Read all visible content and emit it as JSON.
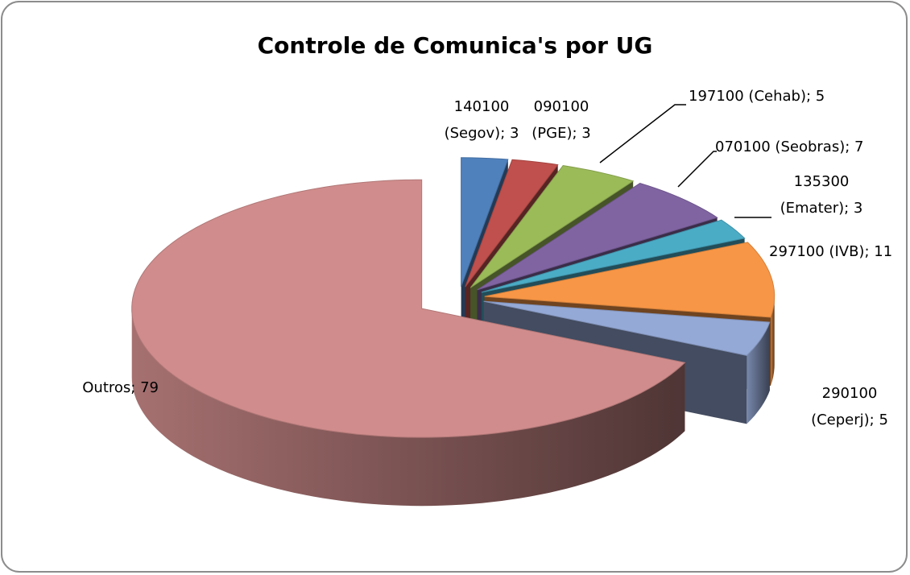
{
  "chart_data": {
    "type": "pie3d",
    "title": "Controle de Comunica's por UG",
    "values": [
      3,
      3,
      5,
      7,
      3,
      11,
      5,
      79
    ],
    "value_labels": [
      "140100 (Segov); 3",
      "090100 (PGE); 3",
      "197100 (Cehab); 5",
      "070100 (Seobras); 7",
      "135300 (Emater); 3",
      "297100 (IVB); 11",
      "290100 (Ceperj); 5",
      "Outros; 79"
    ],
    "colors": [
      "#4f81bd",
      "#c0504d",
      "#9bbb59",
      "#8064a2",
      "#4bacc6",
      "#f79646",
      "#95a9d6",
      "#d08c8c"
    ]
  }
}
